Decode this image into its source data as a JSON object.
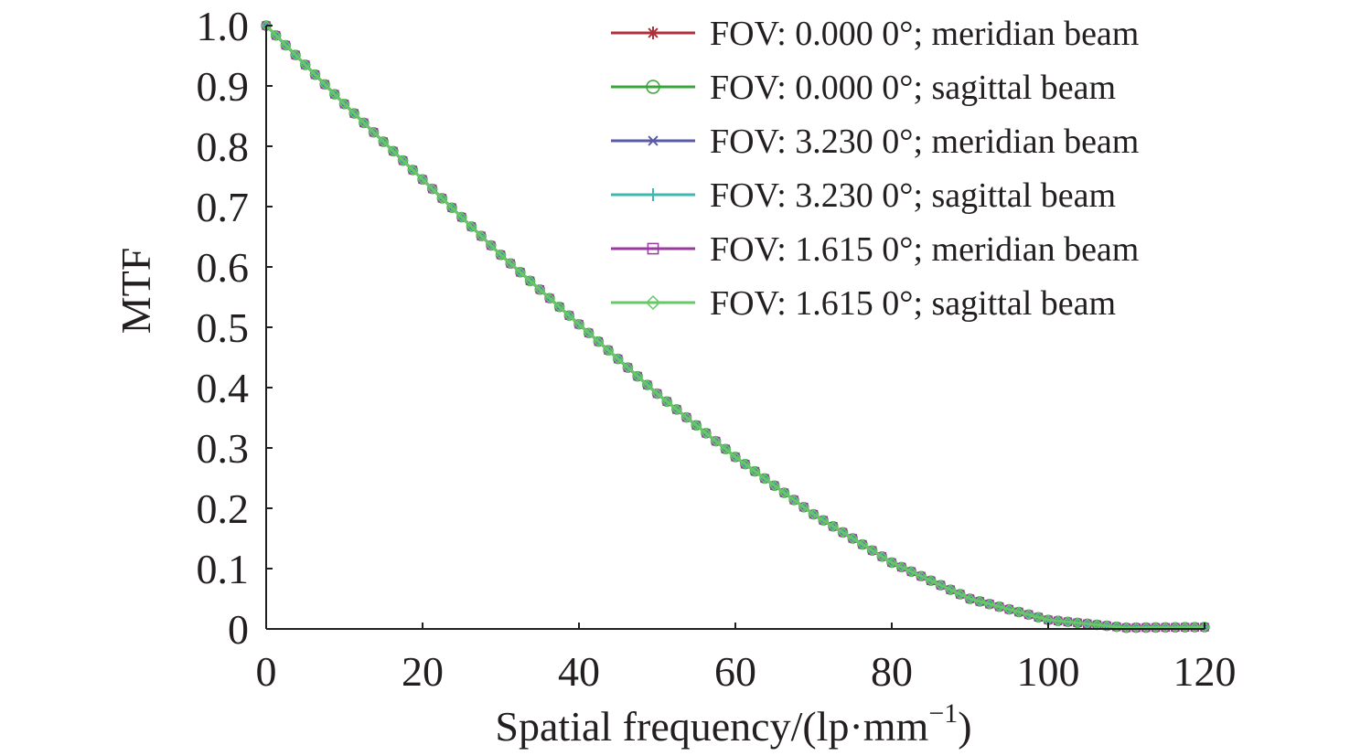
{
  "chart_data": {
    "type": "line",
    "title": "",
    "xlabel": "Spatial frequency/(lp·mm",
    "xlabel_sup": "−1",
    "xlabel_close": ")",
    "ylabel": "MTF",
    "xlim": [
      0,
      120
    ],
    "ylim": [
      0,
      1.0
    ],
    "xticks": [
      0,
      20,
      40,
      60,
      80,
      100,
      120
    ],
    "xtick_labels": [
      "0",
      "20",
      "40",
      "60",
      "80",
      "100",
      "120"
    ],
    "yticks": [
      0,
      0.1,
      0.2,
      0.3,
      0.4,
      0.5,
      0.6,
      0.7,
      0.8,
      0.9,
      1.0
    ],
    "ytick_labels": [
      "0",
      "0.1",
      "0.2",
      "0.3",
      "0.4",
      "0.5",
      "0.6",
      "0.7",
      "0.8",
      "0.9",
      "1.0"
    ],
    "grid": false,
    "legend_position": "top-right",
    "x": [
      0,
      10,
      20,
      30,
      40,
      50,
      60,
      70,
      80,
      90,
      100,
      110,
      120
    ],
    "series": [
      {
        "name": "FOV: 0.000 0°; meridian beam",
        "color": "#b0303a",
        "marker": "star",
        "values": [
          1.0,
          0.87,
          0.745,
          0.62,
          0.505,
          0.39,
          0.285,
          0.19,
          0.11,
          0.05,
          0.015,
          0.002,
          0.003
        ]
      },
      {
        "name": "FOV: 0.000 0°; sagittal beam",
        "color": "#3aa53a",
        "marker": "circle",
        "values": [
          1.0,
          0.87,
          0.745,
          0.62,
          0.505,
          0.39,
          0.285,
          0.19,
          0.11,
          0.05,
          0.015,
          0.002,
          0.003
        ]
      },
      {
        "name": "FOV: 3.230 0°; meridian beam",
        "color": "#5a5aa8",
        "marker": "x",
        "values": [
          1.0,
          0.87,
          0.745,
          0.62,
          0.505,
          0.39,
          0.285,
          0.19,
          0.11,
          0.05,
          0.015,
          0.002,
          0.003
        ]
      },
      {
        "name": "FOV: 3.230 0°; sagittal beam",
        "color": "#3fb8b0",
        "marker": "plus",
        "values": [
          1.0,
          0.87,
          0.745,
          0.62,
          0.505,
          0.39,
          0.285,
          0.19,
          0.11,
          0.05,
          0.015,
          0.002,
          0.003
        ]
      },
      {
        "name": "FOV: 1.615 0°; meridian beam",
        "color": "#9a3aa0",
        "marker": "square",
        "values": [
          1.0,
          0.87,
          0.745,
          0.62,
          0.505,
          0.39,
          0.285,
          0.19,
          0.11,
          0.05,
          0.015,
          0.002,
          0.003
        ]
      },
      {
        "name": "FOV: 1.615 0°; sagittal beam",
        "color": "#66c866",
        "marker": "diamond",
        "values": [
          1.0,
          0.87,
          0.745,
          0.62,
          0.505,
          0.39,
          0.285,
          0.19,
          0.11,
          0.05,
          0.015,
          0.002,
          0.003
        ]
      }
    ]
  }
}
